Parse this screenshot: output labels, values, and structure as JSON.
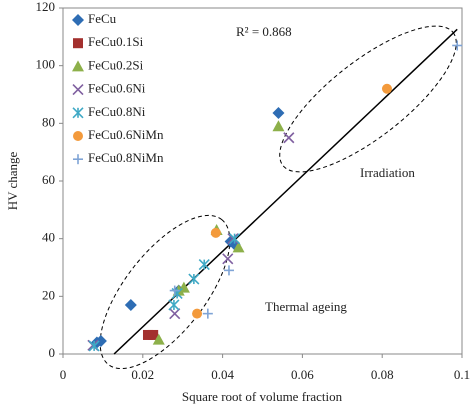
{
  "chart_data": {
    "type": "scatter",
    "x_label": "Square root of volume fraction",
    "y_label": "HV change",
    "xlim": [
      0,
      0.1
    ],
    "xticks": [
      0,
      0.02,
      0.04,
      0.06,
      0.08,
      0.1
    ],
    "ylim": [
      0,
      120
    ],
    "yticks": [
      0,
      20,
      40,
      60,
      80,
      100,
      120
    ],
    "legend": "upper-left",
    "annotations": [
      "R² = 0.868",
      "Irradiation",
      "Thermal ageing"
    ],
    "trendline": {
      "color": "#000000",
      "x": [
        0.0128,
        0.0988
      ],
      "values": [
        0,
        112.6
      ]
    },
    "series": [
      {
        "name": "FeCu",
        "color": "#2e6db4",
        "marker": "diamond",
        "x": [
          0.0085,
          0.0095,
          0.017,
          0.029,
          0.042,
          0.043,
          0.054
        ],
        "values": [
          4,
          4.5,
          17,
          22,
          39,
          38,
          83.6
        ]
      },
      {
        "name": "FeCu0.1Si",
        "color": "#a3302e",
        "marker": "square",
        "x": [
          0.0213,
          0.0226
        ],
        "values": [
          6.6,
          6.6
        ]
      },
      {
        "name": "FeCu0.2Si",
        "color": "#8db04a",
        "marker": "triangle",
        "x": [
          0.024,
          0.029,
          0.0303,
          0.0385,
          0.044,
          0.054
        ],
        "values": [
          5,
          22,
          23,
          43,
          37,
          79
        ]
      },
      {
        "name": "FeCu0.6Ni",
        "color": "#7f5fa0",
        "marker": "x",
        "x": [
          0.0075,
          0.028,
          0.0413,
          0.0426,
          0.0566
        ],
        "values": [
          3,
          14,
          33,
          40,
          75
        ]
      },
      {
        "name": "FeCu0.8Ni",
        "color": "#3fa9c5",
        "marker": "asterisk",
        "x": [
          0.0078,
          0.0278,
          0.0286,
          0.0328,
          0.0354,
          0.043
        ],
        "values": [
          2.8,
          17,
          21,
          26,
          31,
          40
        ]
      },
      {
        "name": "FeCu0.6NiMn",
        "color": "#f39a3c",
        "marker": "circle",
        "x": [
          0.0336,
          0.0383,
          0.0812
        ],
        "values": [
          14,
          42,
          92
        ]
      },
      {
        "name": "FeCu0.8NiMn",
        "color": "#7fa4d6",
        "marker": "plus",
        "x": [
          0.028,
          0.0363,
          0.0416,
          0.0988
        ],
        "values": [
          22,
          14,
          29,
          107
        ]
      }
    ]
  }
}
